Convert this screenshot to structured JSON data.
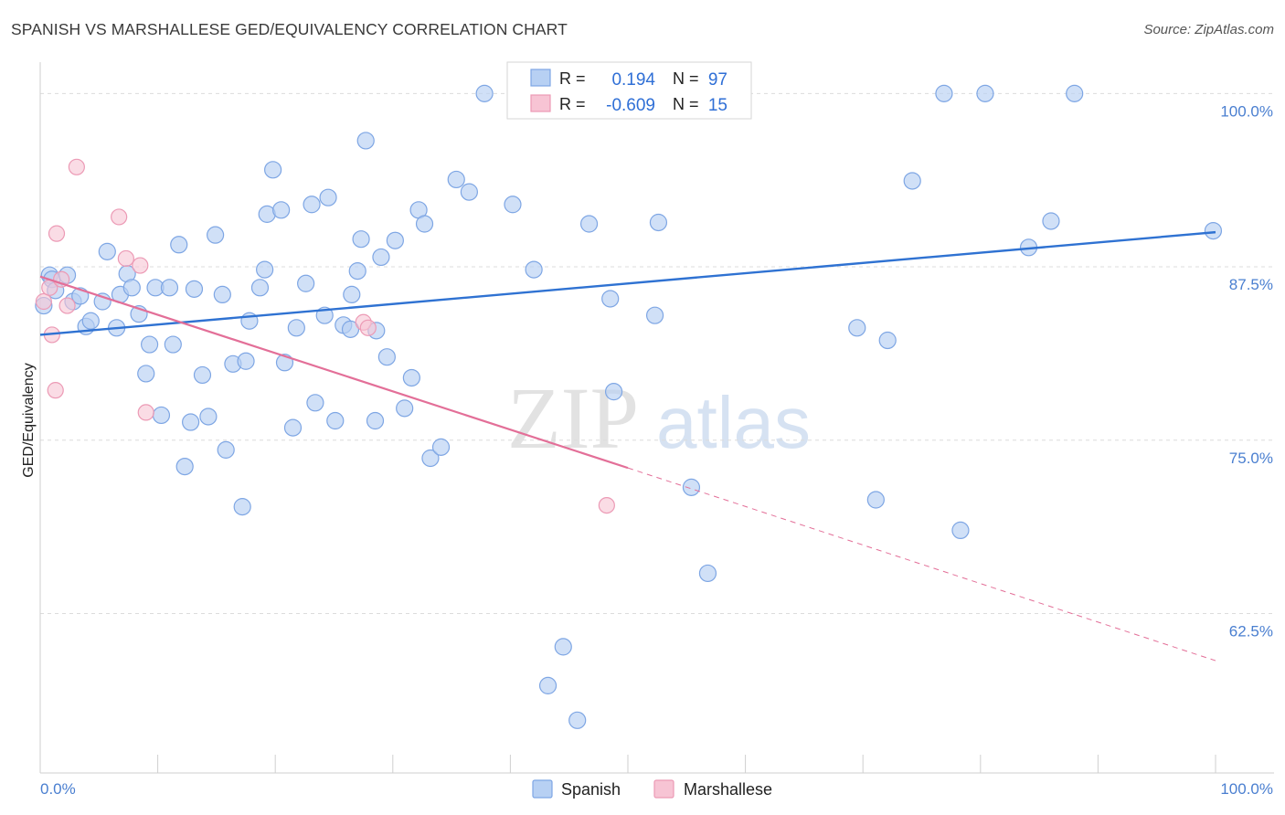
{
  "header": {
    "title": "SPANISH VS MARSHALLESE GED/EQUIVALENCY CORRELATION CHART",
    "source": "Source: ZipAtlas.com"
  },
  "watermark": {
    "zip": "ZIP",
    "atlas": "atlas"
  },
  "stats": {
    "spanish": {
      "r_label": "R =",
      "r_value": "0.194",
      "n_label": "N =",
      "n_value": "97"
    },
    "marshallese": {
      "r_label": "R =",
      "r_value": "-0.609",
      "n_label": "N =",
      "n_value": "15"
    }
  },
  "chart_data": {
    "type": "scatter",
    "title": "SPANISH VS MARSHALLESE GED/EQUIVALENCY CORRELATION CHART",
    "xlabel": "",
    "ylabel": "GED/Equivalency",
    "xlim": [
      0,
      100
    ],
    "ylim": [
      51,
      102
    ],
    "x_tick_labels": [
      "0.0%",
      "100.0%"
    ],
    "y_ticks": [
      {
        "value": 100.0,
        "label": "100.0%"
      },
      {
        "value": 87.5,
        "label": "87.5%"
      },
      {
        "value": 75.0,
        "label": "75.0%"
      },
      {
        "value": 62.5,
        "label": "62.5%"
      }
    ],
    "grid": "horizontal dashed",
    "legend": "bottom-center",
    "colors": {
      "spanish_fill": "#b7d0f3",
      "spanish_stroke": "#7ea6e4",
      "spanish_line": "#2f72d2",
      "marshallese_fill": "#f7c4d4",
      "marshallese_stroke": "#ec9ab5",
      "marshallese_line": "#e36f98"
    },
    "series": [
      {
        "name": "Spanish",
        "r": 0.194,
        "n": 97,
        "trend": {
          "x": [
            0,
            100
          ],
          "y": [
            82.6,
            90.0
          ]
        },
        "points": [
          [
            0.3,
            84.7
          ],
          [
            0.8,
            86.9
          ],
          [
            1.0,
            86.6
          ],
          [
            1.3,
            85.8
          ],
          [
            2.3,
            86.9
          ],
          [
            2.8,
            85.0
          ],
          [
            3.4,
            85.4
          ],
          [
            3.9,
            83.2
          ],
          [
            4.3,
            83.6
          ],
          [
            5.3,
            85.0
          ],
          [
            5.7,
            88.6
          ],
          [
            6.5,
            83.1
          ],
          [
            6.8,
            85.5
          ],
          [
            7.4,
            87.0
          ],
          [
            7.8,
            86.0
          ],
          [
            8.4,
            84.1
          ],
          [
            9.0,
            79.8
          ],
          [
            9.3,
            81.9
          ],
          [
            9.8,
            86.0
          ],
          [
            10.3,
            76.8
          ],
          [
            11.0,
            86.0
          ],
          [
            11.3,
            81.9
          ],
          [
            11.8,
            89.1
          ],
          [
            12.3,
            73.1
          ],
          [
            12.8,
            76.3
          ],
          [
            13.1,
            85.9
          ],
          [
            13.8,
            79.7
          ],
          [
            14.3,
            76.7
          ],
          [
            14.9,
            89.8
          ],
          [
            15.5,
            85.5
          ],
          [
            15.8,
            74.3
          ],
          [
            16.4,
            80.5
          ],
          [
            17.2,
            70.2
          ],
          [
            17.5,
            80.7
          ],
          [
            17.8,
            83.6
          ],
          [
            18.7,
            86.0
          ],
          [
            19.1,
            87.3
          ],
          [
            19.3,
            91.3
          ],
          [
            19.8,
            94.5
          ],
          [
            20.5,
            91.6
          ],
          [
            20.8,
            80.6
          ],
          [
            21.5,
            75.9
          ],
          [
            21.8,
            83.1
          ],
          [
            22.6,
            86.3
          ],
          [
            23.1,
            92.0
          ],
          [
            23.4,
            77.7
          ],
          [
            24.2,
            84.0
          ],
          [
            24.5,
            92.5
          ],
          [
            25.1,
            76.4
          ],
          [
            25.8,
            83.3
          ],
          [
            26.4,
            83.0
          ],
          [
            26.5,
            85.5
          ],
          [
            27.0,
            87.2
          ],
          [
            27.3,
            89.5
          ],
          [
            27.7,
            96.6
          ],
          [
            28.5,
            76.4
          ],
          [
            28.6,
            82.9
          ],
          [
            29.0,
            88.2
          ],
          [
            29.5,
            81.0
          ],
          [
            30.2,
            89.4
          ],
          [
            31.0,
            77.3
          ],
          [
            31.6,
            79.5
          ],
          [
            32.2,
            91.6
          ],
          [
            32.7,
            90.6
          ],
          [
            33.2,
            73.7
          ],
          [
            34.1,
            74.5
          ],
          [
            35.4,
            93.8
          ],
          [
            36.5,
            92.9
          ],
          [
            37.8,
            100.0
          ],
          [
            40.2,
            92.0
          ],
          [
            41.0,
            100.0
          ],
          [
            42.0,
            87.3
          ],
          [
            43.2,
            57.3
          ],
          [
            44.5,
            60.1
          ],
          [
            45.7,
            54.8
          ],
          [
            46.7,
            90.6
          ],
          [
            48.5,
            85.2
          ],
          [
            48.8,
            78.5
          ],
          [
            51.0,
            100.0
          ],
          [
            52.3,
            84.0
          ],
          [
            52.6,
            90.7
          ],
          [
            55.1,
            100.0
          ],
          [
            55.4,
            71.6
          ],
          [
            56.8,
            65.4
          ],
          [
            56.9,
            100.0
          ],
          [
            58.4,
            99.5
          ],
          [
            69.5,
            83.1
          ],
          [
            71.1,
            70.7
          ],
          [
            72.1,
            82.2
          ],
          [
            74.2,
            93.7
          ],
          [
            76.9,
            100.0
          ],
          [
            78.3,
            68.5
          ],
          [
            80.4,
            100.0
          ],
          [
            84.1,
            88.9
          ],
          [
            86.0,
            90.8
          ],
          [
            88.0,
            100.0
          ],
          [
            99.8,
            90.1
          ]
        ]
      },
      {
        "name": "Marshallese",
        "r": -0.609,
        "n": 15,
        "trend": {
          "x": [
            0,
            50
          ],
          "y": [
            86.8,
            73.0
          ]
        },
        "trend_extension": {
          "x": [
            50,
            100
          ],
          "y": [
            73.0,
            59.1
          ]
        },
        "points": [
          [
            0.3,
            85.0
          ],
          [
            0.8,
            86.0
          ],
          [
            1.0,
            82.6
          ],
          [
            1.3,
            78.6
          ],
          [
            1.4,
            89.9
          ],
          [
            1.8,
            86.6
          ],
          [
            2.3,
            84.7
          ],
          [
            3.1,
            94.7
          ],
          [
            6.7,
            91.1
          ],
          [
            7.3,
            88.1
          ],
          [
            8.5,
            87.6
          ],
          [
            9.0,
            77.0
          ],
          [
            27.5,
            83.5
          ],
          [
            27.9,
            83.1
          ],
          [
            48.2,
            70.3
          ]
        ]
      }
    ]
  }
}
